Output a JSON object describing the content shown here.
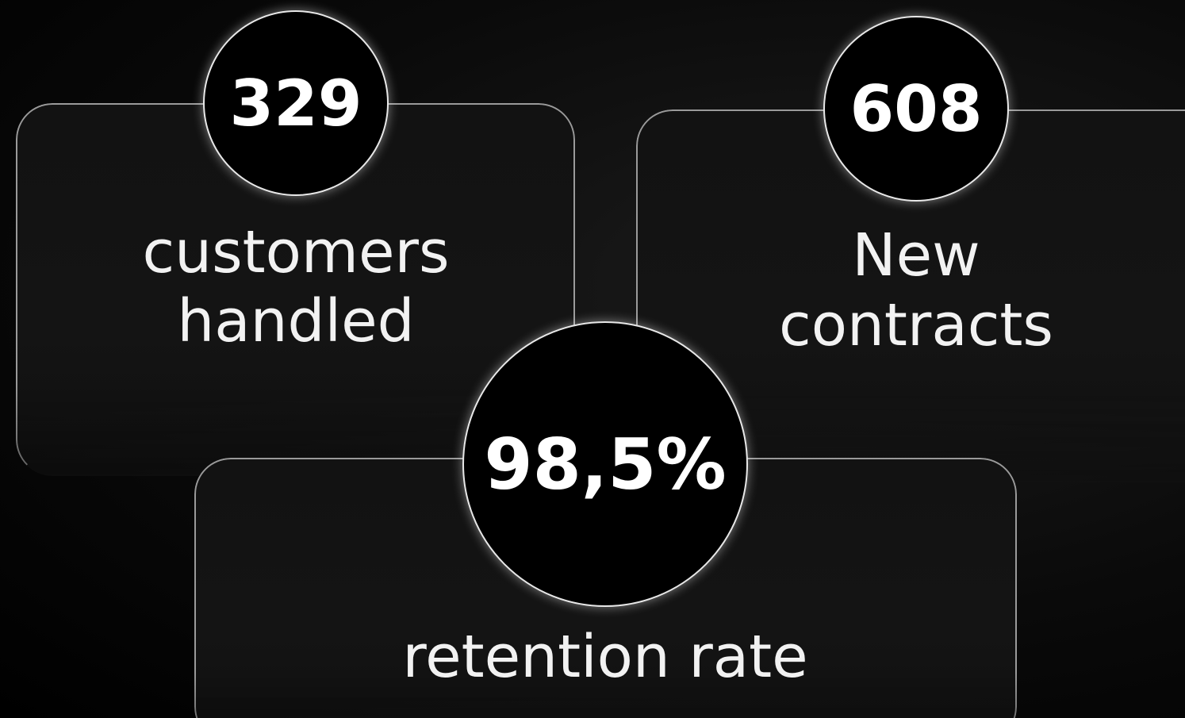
{
  "stats": [
    {
      "value": "329",
      "label_lines": [
        "customers",
        "handled"
      ]
    },
    {
      "value": "608",
      "label_lines": [
        "New",
        "contracts"
      ]
    },
    {
      "value": "98,5%",
      "label_lines": [
        "retention rate"
      ]
    }
  ]
}
